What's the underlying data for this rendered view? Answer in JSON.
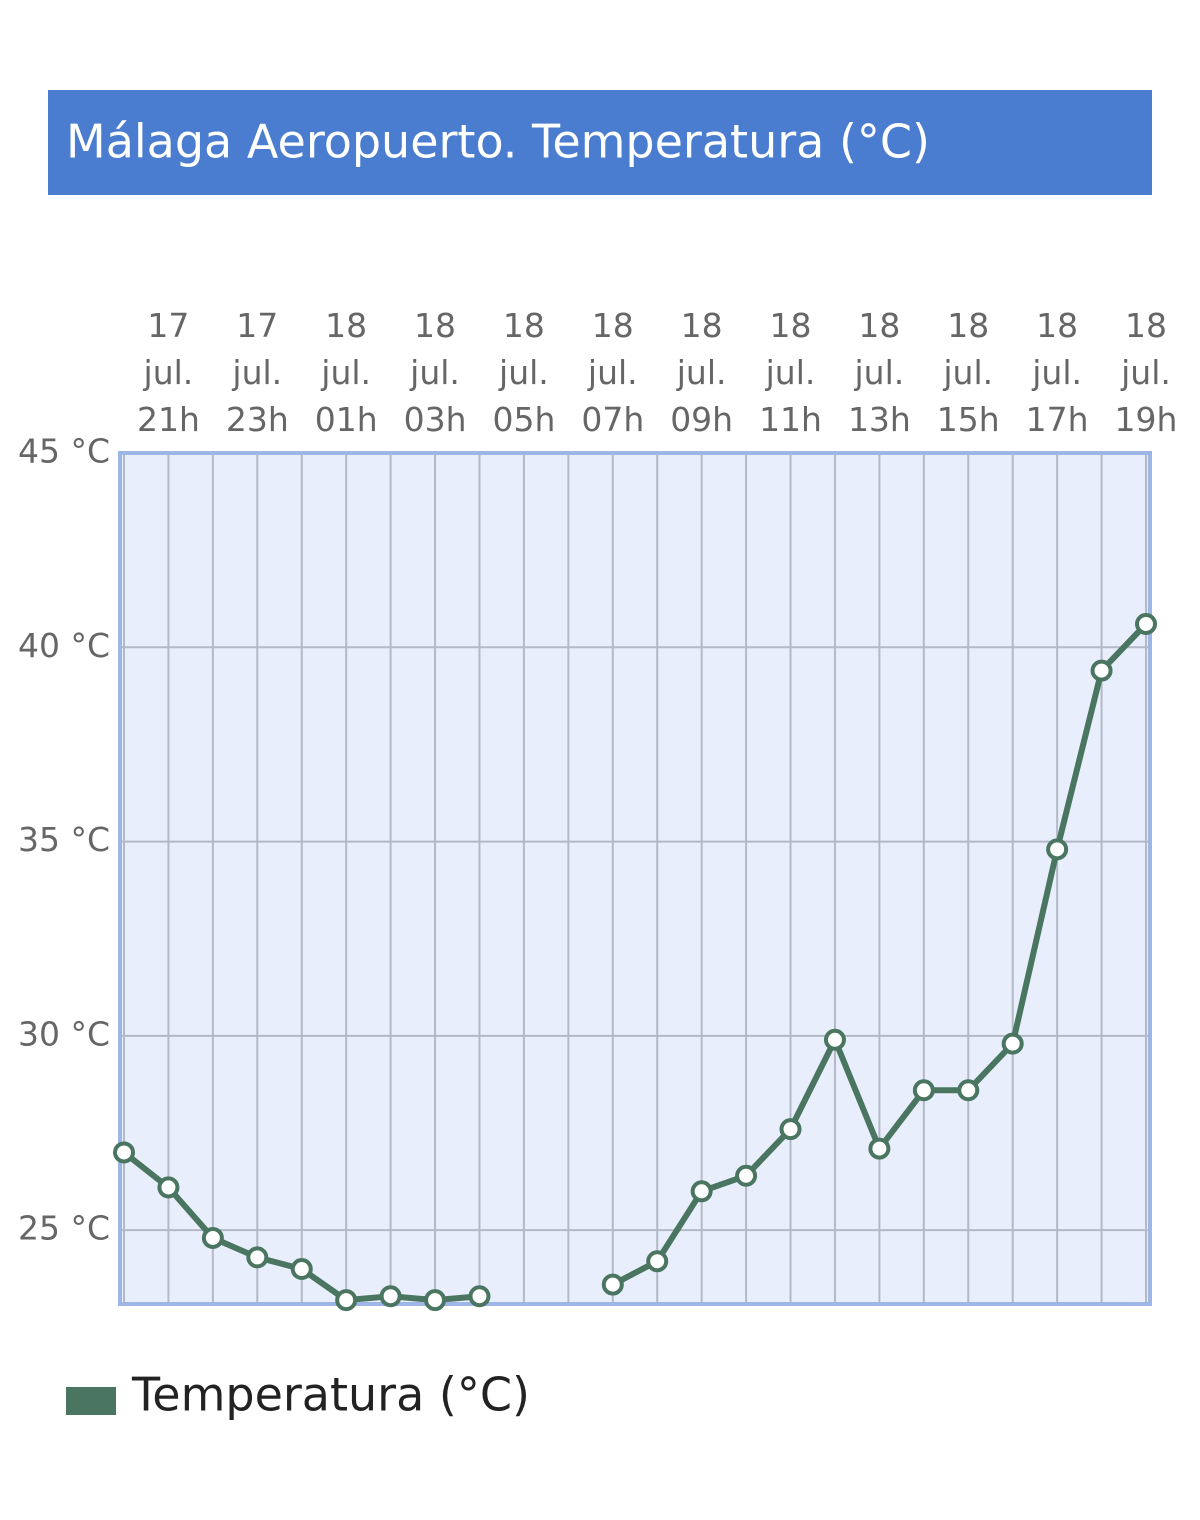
{
  "chart_data": {
    "type": "line",
    "title": "Málaga Aeropuerto. Temperatura (°C)",
    "categories": [
      null,
      "17 jul. 21h",
      null,
      "17 jul. 23h",
      null,
      "18 jul. 01h",
      null,
      "18 jul. 03h",
      null,
      "18 jul. 05h",
      null,
      "18 jul. 07h",
      null,
      "18 jul. 09h",
      null,
      "18 jul. 11h",
      null,
      "18 jul. 13h",
      null,
      "18 jul. 15h",
      null,
      "18 jul. 17h",
      null,
      "18 jul. 19h"
    ],
    "series": [
      {
        "name": "Temperatura (°C)",
        "color": "#4a7561",
        "values": [
          27.0,
          26.1,
          24.8,
          24.3,
          24.0,
          23.2,
          23.3,
          23.2,
          23.3,
          null,
          null,
          23.6,
          24.2,
          26.0,
          26.4,
          27.6,
          29.9,
          27.1,
          28.6,
          28.6,
          29.8,
          34.8,
          39.4,
          40.6
        ]
      }
    ],
    "ylim": [
      23.1,
      45
    ],
    "yticks": [
      {
        "value": 25,
        "label": "25 °C"
      },
      {
        "value": 30,
        "label": "30 °C"
      },
      {
        "value": 35,
        "label": "35 °C"
      },
      {
        "value": 40,
        "label": "40 °C"
      },
      {
        "value": 45,
        "label": "45 °C"
      }
    ],
    "grid": true
  }
}
